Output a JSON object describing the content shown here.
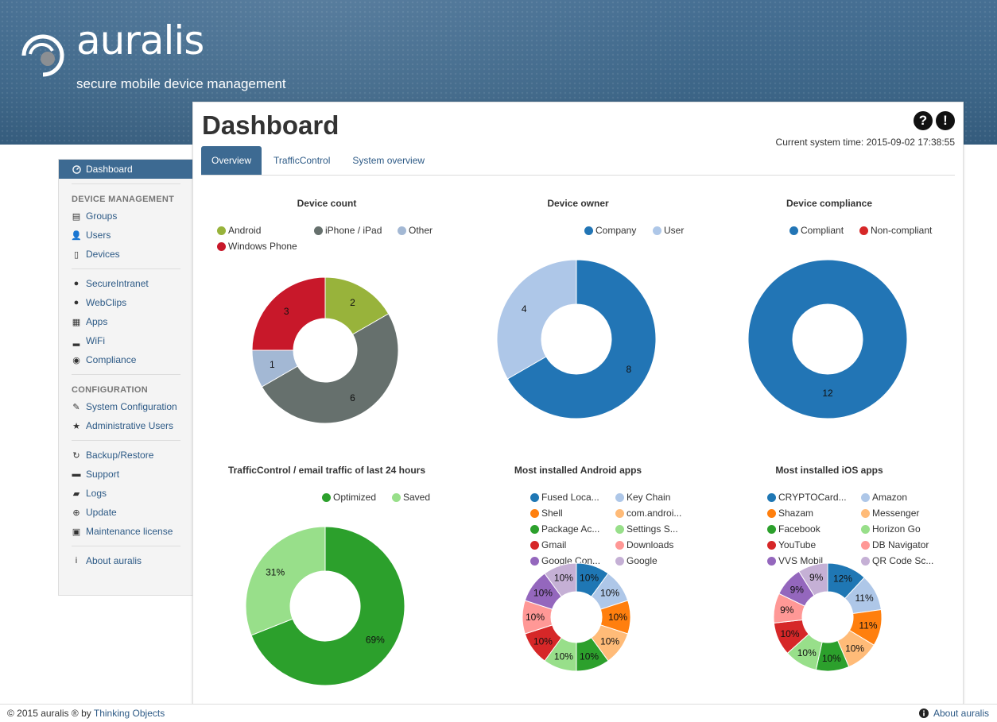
{
  "brand": {
    "name": "auralis",
    "tagline": "secure mobile device management"
  },
  "sidebar": {
    "active": {
      "label": "Dashboard",
      "icon": "dashboard-icon"
    },
    "sections": [
      {
        "title": "DEVICE MANAGEMENT",
        "items": [
          {
            "label": "Groups",
            "icon": "list-icon",
            "glyph": "▤"
          },
          {
            "label": "Users",
            "icon": "user-icon",
            "glyph": "👤"
          },
          {
            "label": "Devices",
            "icon": "phone-icon",
            "glyph": "▯"
          }
        ]
      },
      {
        "title": "",
        "items": [
          {
            "label": "SecureIntranet",
            "icon": "globe-icon",
            "glyph": "●"
          },
          {
            "label": "WebClips",
            "icon": "globe-icon",
            "glyph": "●"
          },
          {
            "label": "Apps",
            "icon": "grid-icon",
            "glyph": "▦"
          },
          {
            "label": "WiFi",
            "icon": "signal-icon",
            "glyph": "▂"
          },
          {
            "label": "Compliance",
            "icon": "eye-icon",
            "glyph": "◉"
          }
        ]
      },
      {
        "title": "CONFIGURATION",
        "items": [
          {
            "label": "System Configuration",
            "icon": "wrench-icon",
            "glyph": "✎"
          },
          {
            "label": "Administrative Users",
            "icon": "star-icon",
            "glyph": "★"
          }
        ]
      },
      {
        "title": "",
        "items": [
          {
            "label": "Backup/Restore",
            "icon": "refresh-icon",
            "glyph": "↻"
          },
          {
            "label": "Support",
            "icon": "hdd-icon",
            "glyph": "▬"
          },
          {
            "label": "Logs",
            "icon": "comment-icon",
            "glyph": "▰"
          },
          {
            "label": "Update",
            "icon": "upload-icon",
            "glyph": "⊕"
          },
          {
            "label": "Maintenance license",
            "icon": "briefcase-icon",
            "glyph": "▣"
          }
        ]
      },
      {
        "title": "",
        "items": [
          {
            "label": "About auralis",
            "icon": "info-icon",
            "glyph": "i"
          }
        ]
      }
    ]
  },
  "main": {
    "title": "Dashboard",
    "system_time": "Current system time: 2015-09-02 17:38:55",
    "help_glyph": "?",
    "alert_glyph": "!",
    "tabs": [
      {
        "label": "Overview",
        "active": true
      },
      {
        "label": "TrafficControl",
        "active": false
      },
      {
        "label": "System overview",
        "active": false
      }
    ]
  },
  "chart_data": [
    {
      "type": "pie",
      "donut": true,
      "title": "Device count",
      "slices": [
        {
          "name": "Android",
          "value": 2,
          "label": "2",
          "color": "#98b33b"
        },
        {
          "name": "iPhone / iPad",
          "value": 6,
          "label": "6",
          "color": "#66706d"
        },
        {
          "name": "Other",
          "value": 1,
          "label": "1",
          "color": "#a3b8d4"
        },
        {
          "name": "Windows Phone",
          "value": 3,
          "label": "3",
          "color": "#c8182a"
        }
      ],
      "legend": "top"
    },
    {
      "type": "pie",
      "donut": true,
      "title": "Device owner",
      "slices": [
        {
          "name": "Company",
          "value": 8,
          "label": "8",
          "color": "#2275b5"
        },
        {
          "name": "User",
          "value": 4,
          "label": "4",
          "color": "#aec7e8"
        }
      ],
      "legend": "top"
    },
    {
      "type": "pie",
      "donut": true,
      "title": "Device compliance",
      "slices": [
        {
          "name": "Compliant",
          "value": 12,
          "label": "12",
          "color": "#2275b5"
        },
        {
          "name": "Non-compliant",
          "value": 0,
          "label": "",
          "color": "#d62728"
        }
      ],
      "legend": "top"
    },
    {
      "type": "pie",
      "donut": true,
      "title": "TrafficControl / email traffic of last 24 hours",
      "slices": [
        {
          "name": "Optimized",
          "value": 69,
          "label": "69%",
          "color": "#2ca02c"
        },
        {
          "name": "Saved",
          "value": 31,
          "label": "31%",
          "color": "#98df8a"
        }
      ],
      "legend": "top"
    },
    {
      "type": "pie",
      "donut": true,
      "title": "Most installed Android apps",
      "slices": [
        {
          "name": "Fused Loca...",
          "value": 10,
          "label": "10%",
          "color": "#1f77b4"
        },
        {
          "name": "Key Chain",
          "value": 10,
          "label": "10%",
          "color": "#aec7e8"
        },
        {
          "name": "Shell",
          "value": 10,
          "label": "10%",
          "color": "#ff7f0e"
        },
        {
          "name": "com.androi...",
          "value": 10,
          "label": "10%",
          "color": "#ffbb78"
        },
        {
          "name": "Package Ac...",
          "value": 10,
          "label": "10%",
          "color": "#2ca02c"
        },
        {
          "name": "Settings S...",
          "value": 10,
          "label": "10%",
          "color": "#98df8a"
        },
        {
          "name": "Gmail",
          "value": 10,
          "label": "10%",
          "color": "#d62728"
        },
        {
          "name": "Downloads",
          "value": 10,
          "label": "10%",
          "color": "#ff9896"
        },
        {
          "name": "Google Con...",
          "value": 10,
          "label": "10%",
          "color": "#9467bd"
        },
        {
          "name": "Google",
          "value": 10,
          "label": "10%",
          "color": "#c5b0d5"
        }
      ],
      "legend": "top"
    },
    {
      "type": "pie",
      "donut": true,
      "title": "Most installed iOS apps",
      "slices": [
        {
          "name": "CRYPTOCard...",
          "value": 12,
          "label": "12%",
          "color": "#1f77b4"
        },
        {
          "name": "Amazon",
          "value": 11,
          "label": "11%",
          "color": "#aec7e8"
        },
        {
          "name": "Shazam",
          "value": 11,
          "label": "11%",
          "color": "#ff7f0e"
        },
        {
          "name": "Messenger",
          "value": 10,
          "label": "10%",
          "color": "#ffbb78"
        },
        {
          "name": "Facebook",
          "value": 10,
          "label": "10%",
          "color": "#2ca02c"
        },
        {
          "name": "Horizon Go",
          "value": 10,
          "label": "10%",
          "color": "#98df8a"
        },
        {
          "name": "YouTube",
          "value": 10,
          "label": "10%",
          "color": "#d62728"
        },
        {
          "name": "DB Navigator",
          "value": 9,
          "label": "9%",
          "color": "#ff9896"
        },
        {
          "name": "VVS Mobil",
          "value": 9,
          "label": "9%",
          "color": "#9467bd"
        },
        {
          "name": "QR Code Sc...",
          "value": 9,
          "label": "9%",
          "color": "#c5b0d5"
        }
      ],
      "legend": "top"
    }
  ],
  "footer": {
    "copyright_prefix": "© 2015 auralis ® by ",
    "company": "Thinking Objects",
    "about": "About auralis"
  }
}
